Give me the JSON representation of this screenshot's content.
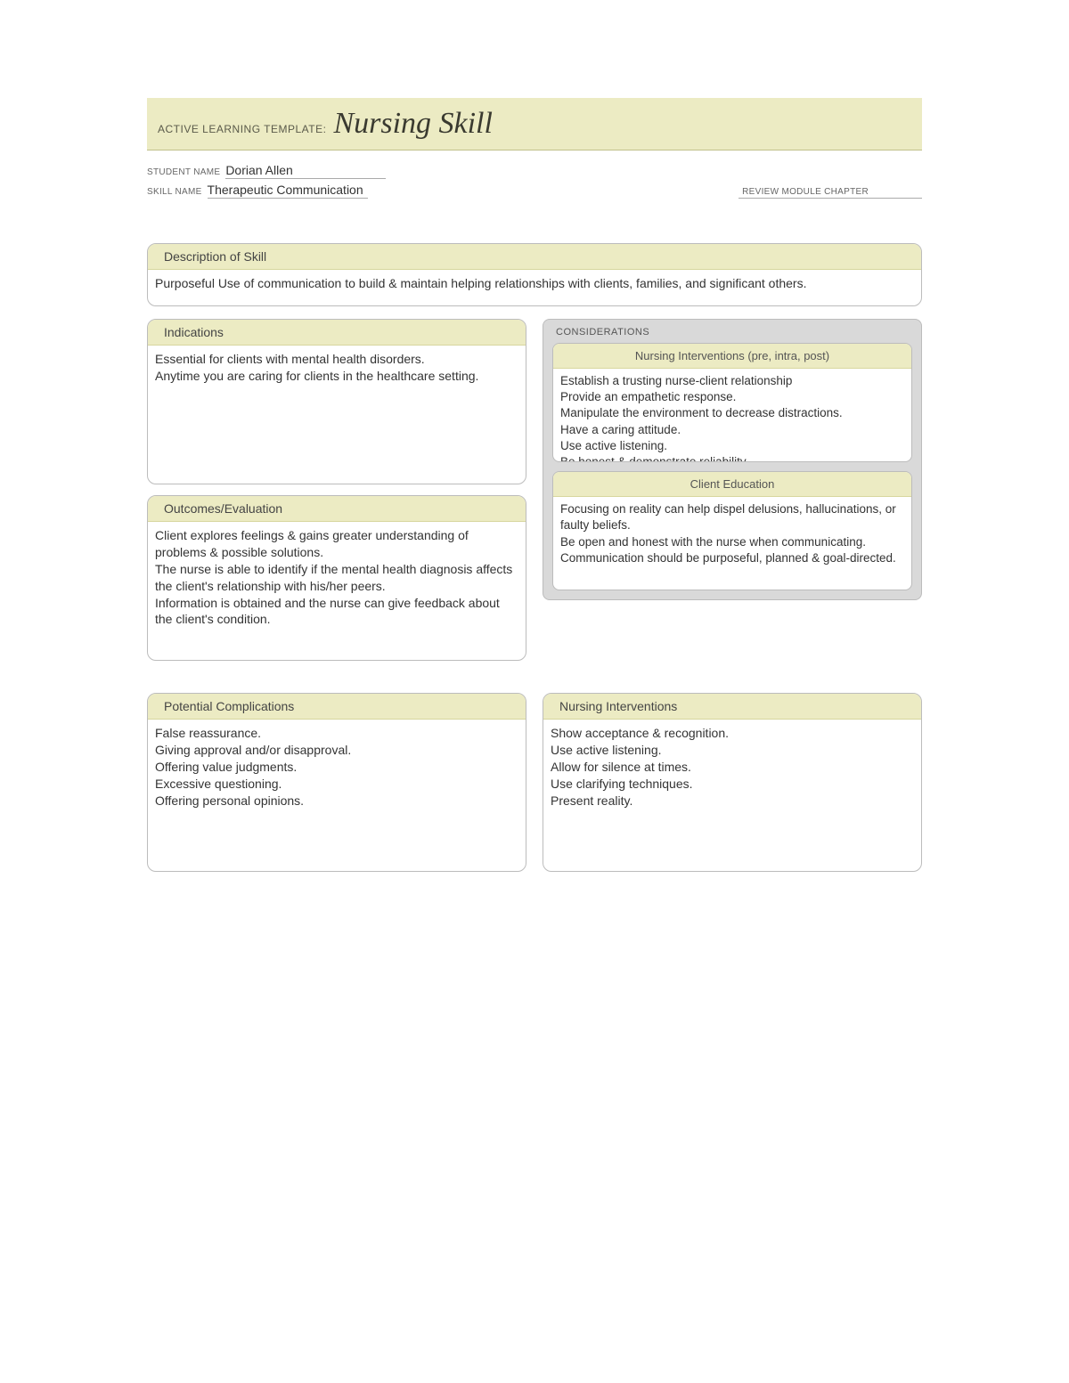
{
  "colors": {
    "header_bg": "#ecebc3",
    "box_border": "#bcbcbc",
    "considerations_bg": "#d9d9d9",
    "text": "#333333",
    "muted_text": "#666666"
  },
  "typography": {
    "title_font": "Georgia, serif",
    "title_fontsize": 34,
    "body_font": "Arial, sans-serif",
    "body_fontsize": 14,
    "label_fontsize": 10
  },
  "header": {
    "prefix": "ACTIVE LEARNING TEMPLATE:",
    "title": "Nursing Skill"
  },
  "meta": {
    "student_label": "STUDENT NAME",
    "student_value": "Dorian Allen",
    "skill_label": "SKILL NAME",
    "skill_value": "Therapeutic Communication",
    "review_label": "REVIEW MODULE CHAPTER"
  },
  "description": {
    "title": "Description of Skill",
    "body": "Purposeful Use of communication to build & maintain helping relationships with clients, families, and significant others."
  },
  "indications": {
    "title": "Indications",
    "body": "Essential for clients with mental health disorders.\nAnytime you are caring for clients in the healthcare setting."
  },
  "considerations": {
    "label": "CONSIDERATIONS",
    "nursing_interventions": {
      "title": "Nursing Interventions (pre, intra, post)",
      "body": "Establish a trusting nurse-client relationship\nProvide an empathetic response.\nManipulate the environment to decrease distractions.\nHave a caring attitude.\nUse active listening.\nBe honest & demonstrate reliability."
    },
    "client_education": {
      "title": "Client Education",
      "body": "Focusing on reality can help dispel delusions, hallucinations, or faulty beliefs.\nBe open and honest with the nurse when communicating.\nCommunication should be purposeful, planned & goal-directed."
    }
  },
  "outcomes": {
    "title": "Outcomes/Evaluation",
    "body": "Client explores feelings & gains greater understanding of problems & possible solutions.\nThe nurse is able to identify if the mental health diagnosis affects the client's relationship with his/her peers.\nInformation is obtained and the nurse can give feedback about the client's condition."
  },
  "complications": {
    "title": "Potential Complications",
    "body": "False reassurance.\nGiving approval and/or disapproval.\nOffering value judgments.\nExcessive questioning.\nOffering personal opinions."
  },
  "interventions2": {
    "title": "Nursing Interventions",
    "body": "Show acceptance & recognition.\nUse active listening.\nAllow for silence at times.\nUse clarifying techniques.\nPresent reality."
  }
}
